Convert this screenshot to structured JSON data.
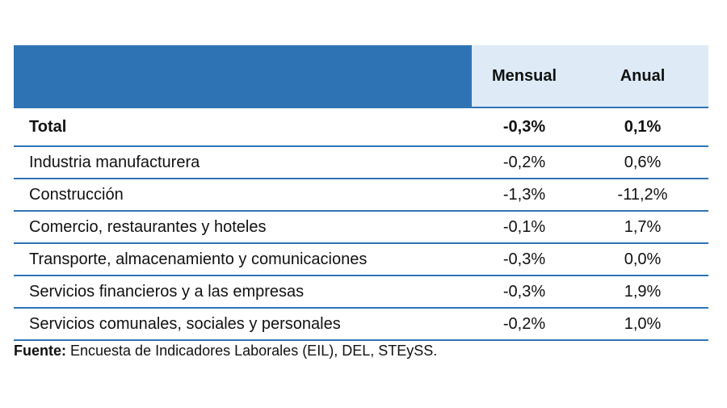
{
  "chart_data": {
    "type": "table",
    "columns": [
      "Mensual",
      "Anual"
    ],
    "rows": [
      {
        "label": "Total",
        "mensual": "-0,3%",
        "anual": "0,1%"
      },
      {
        "label": "Industria manufacturera",
        "mensual": "-0,2%",
        "anual": "0,6%"
      },
      {
        "label": "Construcción",
        "mensual": "-1,3%",
        "anual": "-11,2%"
      },
      {
        "label": "Comercio, restaurantes y hoteles",
        "mensual": "-0,1%",
        "anual": "1,7%"
      },
      {
        "label": "Transporte, almacenamiento y comunicaciones",
        "mensual": "-0,3%",
        "anual": "0,0%"
      },
      {
        "label": "Servicios financieros y a las empresas",
        "mensual": "-0,3%",
        "anual": "1,9%"
      },
      {
        "label": "Servicios comunales, sociales y personales",
        "mensual": "-0,2%",
        "anual": "1,0%"
      }
    ],
    "values_mensual": [
      -0.3,
      -0.2,
      -1.3,
      -0.1,
      -0.3,
      -0.3,
      -0.2
    ],
    "values_anual": [
      0.1,
      0.6,
      -11.2,
      1.7,
      0.0,
      1.9,
      1.0
    ]
  },
  "source": {
    "label": "Fuente:",
    "text": " Encuesta de Indicadores Laborales (EIL), DEL, STEySS."
  },
  "colors": {
    "header_blue": "#2E74B5",
    "header_light": "#DEEBF7",
    "rule": "#2E74B5"
  }
}
